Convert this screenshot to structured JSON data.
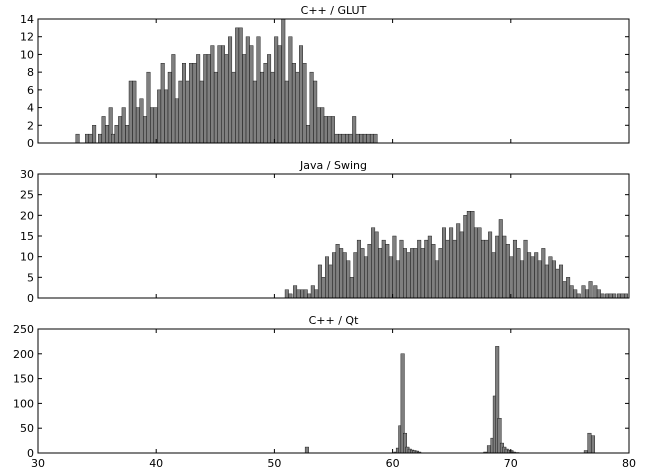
{
  "chart_data": [
    {
      "type": "bar",
      "title": "C++ / GLUT",
      "xlim": [
        30,
        80
      ],
      "ylim": [
        0,
        14
      ],
      "yticks": [
        0,
        2,
        4,
        6,
        8,
        10,
        12,
        14
      ],
      "xticks": [],
      "bar_color": "#7f7f7f",
      "bin_width": 0.3,
      "x": [
        33.2,
        34.0,
        34.3,
        34.6,
        35.1,
        35.4,
        35.7,
        36.0,
        36.2,
        36.5,
        36.8,
        37.1,
        37.4,
        37.7,
        38.0,
        38.3,
        38.6,
        38.9,
        39.2,
        39.5,
        39.8,
        40.1,
        40.4,
        40.7,
        41.0,
        41.3,
        41.6,
        41.9,
        42.2,
        42.5,
        42.8,
        43.1,
        43.4,
        43.7,
        44.0,
        44.3,
        44.6,
        44.9,
        45.2,
        45.5,
        45.8,
        46.1,
        46.4,
        46.7,
        47.0,
        47.3,
        47.6,
        47.9,
        48.2,
        48.5,
        48.8,
        49.1,
        49.4,
        49.7,
        50.0,
        50.3,
        50.6,
        50.9,
        51.2,
        51.5,
        51.8,
        52.1,
        52.4,
        52.7,
        53.0,
        53.3,
        53.6,
        53.9,
        54.2,
        54.5,
        54.8,
        55.1,
        55.4,
        55.7,
        56.0,
        56.3,
        56.6,
        56.9,
        57.2,
        57.5,
        57.8,
        58.1,
        58.4
      ],
      "values": [
        1,
        1,
        1,
        2,
        1,
        3,
        2,
        4,
        1,
        2,
        3,
        4,
        2,
        7,
        7,
        4,
        5,
        3,
        8,
        4,
        4,
        6,
        9,
        6,
        8,
        10,
        5,
        7,
        9,
        7,
        9,
        9,
        10,
        7,
        10,
        10,
        11,
        8,
        11,
        11,
        10,
        12,
        8,
        13,
        13,
        10,
        12,
        11,
        7,
        12,
        8,
        9,
        10,
        8,
        12,
        11,
        14,
        7,
        12,
        9,
        8,
        11,
        9,
        2,
        8,
        7,
        4,
        4,
        3,
        3,
        3,
        1,
        1,
        1,
        1,
        1,
        3,
        1,
        1,
        1,
        1,
        1,
        1
      ]
    },
    {
      "type": "bar",
      "title": "Java / Swing",
      "xlim": [
        30,
        80
      ],
      "ylim": [
        0,
        30
      ],
      "yticks": [
        0,
        5,
        10,
        15,
        20,
        25,
        30
      ],
      "xticks": [],
      "bar_color": "#7f7f7f",
      "bin_width": 0.3,
      "x": [
        50.9,
        51.2,
        51.6,
        51.9,
        52.2,
        52.5,
        52.8,
        53.1,
        53.4,
        53.7,
        54.0,
        54.3,
        54.6,
        54.9,
        55.2,
        55.5,
        55.8,
        56.1,
        56.4,
        56.7,
        57.0,
        57.3,
        57.6,
        57.9,
        58.2,
        58.5,
        58.8,
        59.1,
        59.4,
        59.7,
        60.0,
        60.3,
        60.6,
        60.9,
        61.2,
        61.5,
        61.8,
        62.1,
        62.4,
        62.7,
        63.0,
        63.3,
        63.6,
        63.9,
        64.2,
        64.5,
        64.8,
        65.1,
        65.4,
        65.7,
        66.0,
        66.3,
        66.6,
        66.9,
        67.2,
        67.5,
        67.8,
        68.1,
        68.4,
        68.7,
        69.0,
        69.3,
        69.6,
        69.9,
        70.2,
        70.5,
        70.8,
        71.1,
        71.4,
        71.7,
        72.0,
        72.3,
        72.6,
        72.9,
        73.2,
        73.5,
        73.8,
        74.1,
        74.4,
        74.7,
        75.0,
        75.3,
        75.6,
        76.0,
        76.3,
        76.6,
        77.0,
        77.3,
        77.6,
        78.0,
        78.3,
        78.6,
        79.0,
        79.3,
        79.6
      ],
      "values": [
        2,
        1,
        3,
        2,
        2,
        2,
        1,
        3,
        2,
        8,
        5,
        10,
        8,
        11,
        13,
        12,
        11,
        9,
        5,
        11,
        14,
        12,
        10,
        13,
        17,
        16,
        12,
        14,
        13,
        10,
        15,
        9,
        14,
        12,
        11,
        12,
        12,
        14,
        12,
        14,
        15,
        13,
        9,
        12,
        17,
        14,
        17,
        14,
        18,
        16,
        20,
        21,
        21,
        17,
        17,
        14,
        14,
        16,
        11,
        15,
        19,
        15,
        13,
        10,
        14,
        12,
        9,
        14,
        11,
        10,
        11,
        9,
        12,
        8,
        10,
        9,
        7,
        8,
        4,
        5,
        3,
        2,
        1,
        3,
        2,
        4,
        3,
        2,
        1,
        1,
        1,
        1,
        1,
        1,
        1
      ]
    },
    {
      "type": "bar",
      "title": "C++ / Qt",
      "xlim": [
        30,
        80
      ],
      "ylim": [
        0,
        250
      ],
      "yticks": [
        0,
        50,
        100,
        150,
        200,
        250
      ],
      "xticks": [
        30,
        40,
        50,
        60,
        70,
        80
      ],
      "bar_color": "#7f7f7f",
      "bin_width": 0.3,
      "x": [
        52.6,
        60.1,
        60.3,
        60.5,
        60.7,
        60.9,
        61.1,
        61.3,
        61.5,
        61.7,
        61.9,
        62.1,
        67.7,
        68.0,
        68.3,
        68.5,
        68.7,
        68.9,
        69.1,
        69.3,
        69.5,
        69.7,
        69.9,
        70.1,
        70.4,
        76.2,
        76.5,
        76.8
      ],
      "values": [
        12,
        2,
        10,
        55,
        200,
        40,
        12,
        8,
        6,
        5,
        4,
        2,
        2,
        15,
        30,
        115,
        215,
        70,
        20,
        12,
        8,
        6,
        5,
        2,
        1,
        5,
        40,
        35
      ]
    }
  ]
}
